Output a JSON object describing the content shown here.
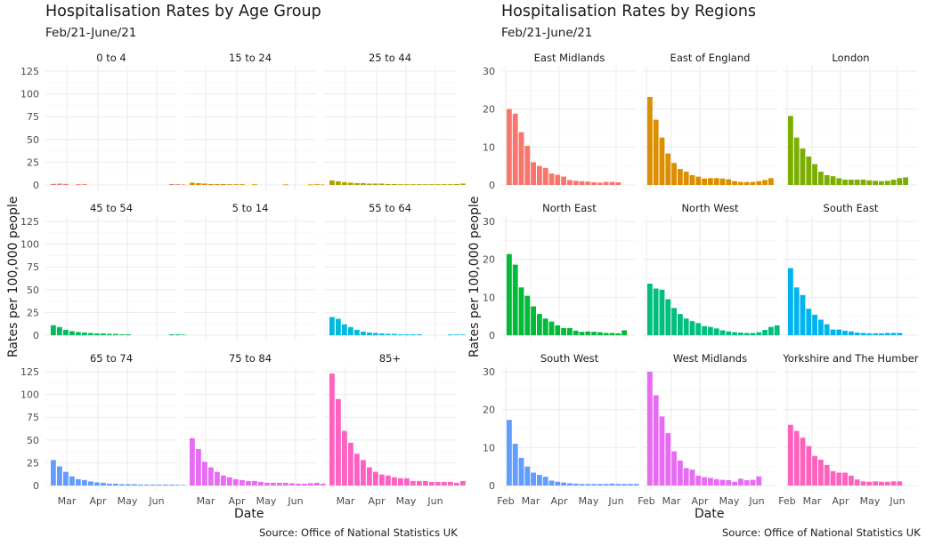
{
  "chart_data": [
    {
      "type": "bar",
      "title": "Hospitalisation Rates by Age Group",
      "subtitle": "Feb/21-June/21",
      "xlabel": "Date",
      "ylabel": "Rates per 100,000 people",
      "caption": "Source: Office of National Statistics UK",
      "ylim": [
        0,
        125
      ],
      "yticks": [
        "0",
        "25",
        "50",
        "75",
        "100",
        "125"
      ],
      "xticks": [
        "Mar",
        "Apr",
        "May",
        "Jun"
      ],
      "grid": true,
      "facets": [
        {
          "label": "0 to 4",
          "color": "#F8766D",
          "values": [
            1.2,
            1.5,
            1.2,
            null,
            0.8,
            0.8,
            null,
            null,
            null,
            null,
            null,
            null,
            null,
            null,
            null,
            null,
            null,
            null,
            null,
            1,
            0.8,
            0.7
          ]
        },
        {
          "label": "15 to 24",
          "color": "#DB8E00",
          "values": [
            2.5,
            2,
            1.5,
            1,
            1,
            1,
            0.8,
            0.8,
            0.8,
            null,
            0.7,
            null,
            null,
            null,
            null,
            0.6,
            null,
            null,
            null,
            0.6,
            0.8,
            0.6
          ]
        },
        {
          "label": "25 to 44",
          "color": "#AEA200",
          "values": [
            5,
            4,
            3,
            2.5,
            2,
            2,
            1.5,
            1.5,
            1.5,
            1,
            1,
            0.8,
            0.8,
            0.8,
            0.8,
            0.8,
            0.8,
            0.8,
            0.8,
            0.8,
            1,
            1.5
          ]
        },
        {
          "label": "45 to 54",
          "color": "#00BD5C",
          "values": [
            11,
            9,
            6,
            4.5,
            3.5,
            3,
            2.5,
            2,
            2,
            1.5,
            1.5,
            1,
            1,
            null,
            null,
            null,
            null,
            null,
            null,
            1,
            1,
            0.8
          ]
        },
        {
          "label": "5 to 14",
          "color": "#00C1A7",
          "values": [
            null,
            null,
            null,
            null,
            null,
            null,
            null,
            null,
            null,
            null,
            null,
            null,
            null,
            null,
            null,
            null,
            null,
            null,
            null,
            null,
            null,
            null
          ]
        },
        {
          "label": "55 to 64",
          "color": "#00BADE",
          "values": [
            20,
            18,
            12,
            9,
            6,
            4,
            3,
            2.5,
            2,
            1.5,
            1.5,
            1,
            1,
            1,
            1,
            null,
            null,
            null,
            null,
            0.8,
            0.8,
            0.8
          ]
        },
        {
          "label": "65 to 74",
          "color": "#619CFF",
          "values": [
            28,
            21,
            15,
            10,
            7,
            6,
            4.5,
            3.5,
            3,
            2,
            2,
            1.5,
            1.5,
            1.5,
            1,
            1,
            1,
            1,
            1,
            1,
            0.8,
            0.8
          ]
        },
        {
          "label": "75 to 84",
          "color": "#E76BF3",
          "values": [
            52,
            40,
            26,
            20,
            15,
            11,
            9,
            7,
            6,
            5,
            5,
            4,
            3,
            3,
            3,
            3,
            2.5,
            2,
            2,
            2.5,
            3,
            2
          ]
        },
        {
          "label": "85+",
          "color": "#FF61C3",
          "values": [
            123,
            95,
            60,
            47,
            35,
            28,
            20,
            15,
            12,
            11,
            9,
            8,
            8,
            5,
            5,
            5,
            4,
            4,
            4,
            4,
            3,
            5
          ]
        }
      ]
    },
    {
      "type": "bar",
      "title": "Hospitalisation Rates by Regions",
      "subtitle": "Feb/21-June/21",
      "xlabel": "Date",
      "ylabel": "Rates per 100,000 people",
      "caption": "Source: Office of National Statistics UK",
      "ylim": [
        0,
        30
      ],
      "yticks": [
        "0",
        "10",
        "20",
        "30"
      ],
      "xticks": [
        "Feb",
        "Mar",
        "Apr",
        "May",
        "Jun"
      ],
      "grid": true,
      "facets": [
        {
          "label": "East Midlands",
          "color": "#F8766D",
          "values": [
            20,
            18.8,
            13.9,
            10.3,
            6,
            5,
            4.5,
            3,
            2.7,
            2.2,
            1.3,
            1.1,
            1,
            0.9,
            0.7,
            0.6,
            0.8,
            0.8,
            0.7
          ]
        },
        {
          "label": "East of England",
          "color": "#DB8E00",
          "values": [
            23.2,
            17.2,
            12.5,
            8.3,
            5.8,
            4.2,
            3.5,
            2.6,
            2.2,
            1.7,
            1.8,
            1.8,
            1.7,
            1.5,
            1,
            0.8,
            0.8,
            0.8,
            1,
            1.3,
            1.8
          ]
        },
        {
          "label": "London",
          "color": "#7CAE00",
          "values": [
            18.2,
            12.5,
            9.6,
            7.5,
            5.5,
            3.5,
            2.6,
            2.3,
            1.8,
            1.4,
            1.4,
            1.4,
            1.4,
            1.2,
            1.1,
            1,
            1.1,
            1.4,
            1.8,
            2
          ]
        },
        {
          "label": "North East",
          "color": "#00BA38",
          "values": [
            21.4,
            18.6,
            12.6,
            10.4,
            7.6,
            5.6,
            4.4,
            3.6,
            2.6,
            1.9,
            1.9,
            1.2,
            0.9,
            1,
            0.9,
            0.8,
            0.6,
            0.6,
            0.5,
            1.3
          ]
        },
        {
          "label": "North West",
          "color": "#00BF7D",
          "values": [
            13.6,
            12.3,
            12,
            9.5,
            7.2,
            5.6,
            4.4,
            3.7,
            3.2,
            2.4,
            2.2,
            1.8,
            1.3,
            1,
            0.8,
            0.7,
            0.6,
            0.6,
            0.8,
            1.4,
            2.2,
            2.6
          ]
        },
        {
          "label": "South East",
          "color": "#00B4EF",
          "values": [
            17.7,
            12.6,
            10.6,
            7,
            5.4,
            4.1,
            2.9,
            1.5,
            1.5,
            1.2,
            1,
            0.7,
            0.6,
            0.5,
            0.5,
            0.5,
            0.6,
            0.6,
            0.6
          ]
        },
        {
          "label": "South West",
          "color": "#619CFF",
          "values": [
            17.3,
            11,
            7.3,
            5,
            3.4,
            2.8,
            2.3,
            1.3,
            1,
            0.8,
            0.6,
            0.5,
            0.4,
            0.4,
            0.4,
            0.4,
            0.4,
            0.5,
            0.4,
            0.4,
            0.4,
            0.4
          ]
        },
        {
          "label": "West Midlands",
          "color": "#E76BF3",
          "values": [
            30,
            23.8,
            18.2,
            13.8,
            9,
            6.6,
            4.6,
            4.2,
            2.6,
            2.2,
            2,
            1.7,
            1.5,
            1.4,
            1,
            1.8,
            1.4,
            1.5,
            2.4
          ]
        },
        {
          "label": "Yorkshire and The Humber",
          "color": "#FF62BC",
          "values": [
            16,
            14.4,
            12.6,
            10.4,
            7.8,
            6.8,
            5.4,
            3.8,
            3.4,
            3.4,
            2.6,
            1.6,
            1.1,
            1,
            1.1,
            1,
            1,
            1.1,
            1.1
          ]
        }
      ]
    }
  ]
}
